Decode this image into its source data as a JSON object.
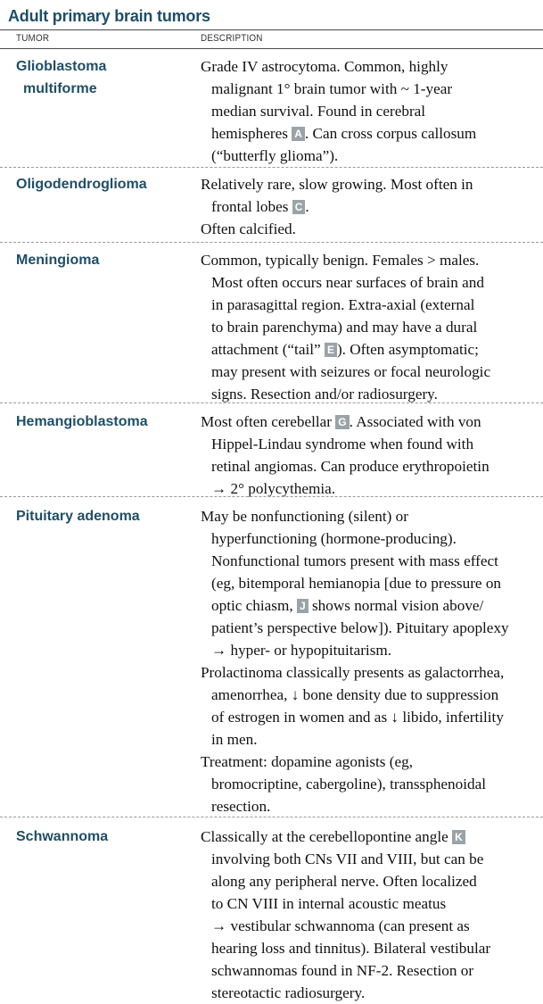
{
  "title": "Adult primary brain tumors",
  "columns": {
    "tumor": "TUMOR",
    "description": "DESCRIPTION"
  },
  "rows": [
    {
      "name_lines": [
        "Glioblastoma",
        "multiforme"
      ],
      "paragraphs": [
        {
          "lines": [
            [
              {
                "t": "Grade IV astrocytoma. Common, highly"
              }
            ],
            [
              {
                "t": "malignant 1° brain tumor with ~ 1-year"
              }
            ],
            [
              {
                "t": "median survival. Found in cerebral"
              }
            ],
            [
              {
                "t": "hemispheres "
              },
              {
                "badge": "A"
              },
              {
                "t": ". Can cross corpus callosum"
              }
            ],
            [
              {
                "t": "(“butterfly glioma”)."
              }
            ]
          ]
        }
      ]
    },
    {
      "name_lines": [
        "Oligodendroglioma"
      ],
      "paragraphs": [
        {
          "lines": [
            [
              {
                "t": "Relatively rare, slow growing. Most often in"
              }
            ],
            [
              {
                "t": "frontal lobes "
              },
              {
                "badge": "C"
              },
              {
                "t": "."
              }
            ]
          ]
        },
        {
          "lines": [
            [
              {
                "t": "Often calcified."
              }
            ]
          ]
        }
      ]
    },
    {
      "name_lines": [
        "Meningioma"
      ],
      "paragraphs": [
        {
          "lines": [
            [
              {
                "t": "Common, typically benign. Females > males."
              }
            ],
            [
              {
                "t": "Most often occurs near surfaces of brain and"
              }
            ],
            [
              {
                "t": "in parasagittal region. Extra-axial (external"
              }
            ],
            [
              {
                "t": "to brain parenchyma) and may have a dural"
              }
            ],
            [
              {
                "t": "attachment (“tail” "
              },
              {
                "badge": "E"
              },
              {
                "t": "). Often asymptomatic;"
              }
            ],
            [
              {
                "t": "may present with seizures or focal neurologic"
              }
            ],
            [
              {
                "t": "signs. Resection and/or radiosurgery."
              }
            ]
          ]
        }
      ]
    },
    {
      "name_lines": [
        "Hemangioblastoma"
      ],
      "paragraphs": [
        {
          "lines": [
            [
              {
                "t": "Most often cerebellar "
              },
              {
                "badge": "G"
              },
              {
                "t": ". Associated with von"
              }
            ],
            [
              {
                "t": "Hippel-Lindau syndrome when found with"
              }
            ],
            [
              {
                "t": "retinal angiomas. Can produce erythropoietin"
              }
            ],
            [
              {
                "t": "→ 2° polycythemia."
              }
            ]
          ]
        }
      ]
    },
    {
      "name_lines": [
        "Pituitary adenoma"
      ],
      "paragraphs": [
        {
          "lines": [
            [
              {
                "t": "May be nonfunctioning (silent) or"
              }
            ],
            [
              {
                "t": "hyperfunctioning (hormone-producing)."
              }
            ],
            [
              {
                "t": "Nonfunctional tumors present with mass effect"
              }
            ],
            [
              {
                "t": "(eg, bitemporal hemianopia [due to pressure on"
              }
            ],
            [
              {
                "t": "optic chiasm, "
              },
              {
                "badge": "J"
              },
              {
                "t": " shows normal vision above/"
              }
            ],
            [
              {
                "t": "patient’s perspective below]). Pituitary apoplexy"
              }
            ],
            [
              {
                "t": "→ hyper- or hypopituitarism."
              }
            ]
          ]
        },
        {
          "lines": [
            [
              {
                "t": "Prolactinoma classically presents as galactorrhea,"
              }
            ],
            [
              {
                "t": "amenorrhea, ↓ bone density due to suppression"
              }
            ],
            [
              {
                "t": "of estrogen in women and as ↓ libido, infertility"
              }
            ],
            [
              {
                "t": "in men."
              }
            ]
          ]
        },
        {
          "lines": [
            [
              {
                "t": "Treatment: dopamine agonists (eg,"
              }
            ],
            [
              {
                "t": "bromocriptine, cabergoline), transsphenoidal"
              }
            ],
            [
              {
                "t": "resection."
              }
            ]
          ]
        }
      ]
    },
    {
      "name_lines": [
        "Schwannoma"
      ],
      "paragraphs": [
        {
          "lines": [
            [
              {
                "t": "Classically at the cerebellopontine angle "
              },
              {
                "badge": "K"
              }
            ],
            [
              {
                "t": "involving both CNs VII and VIII, but can be"
              }
            ],
            [
              {
                "t": "along any peripheral nerve. Often localized"
              }
            ],
            [
              {
                "t": "to CN VIII in internal acoustic meatus"
              }
            ],
            [
              {
                "t": "→ vestibular schwannoma (can present as"
              }
            ],
            [
              {
                "t": "hearing loss and tinnitus). Bilateral vestibular"
              }
            ],
            [
              {
                "t": "schwannomas found in NF-2. Resection or"
              }
            ],
            [
              {
                "t": "stereotactic radiosurgery."
              }
            ]
          ]
        }
      ]
    }
  ]
}
